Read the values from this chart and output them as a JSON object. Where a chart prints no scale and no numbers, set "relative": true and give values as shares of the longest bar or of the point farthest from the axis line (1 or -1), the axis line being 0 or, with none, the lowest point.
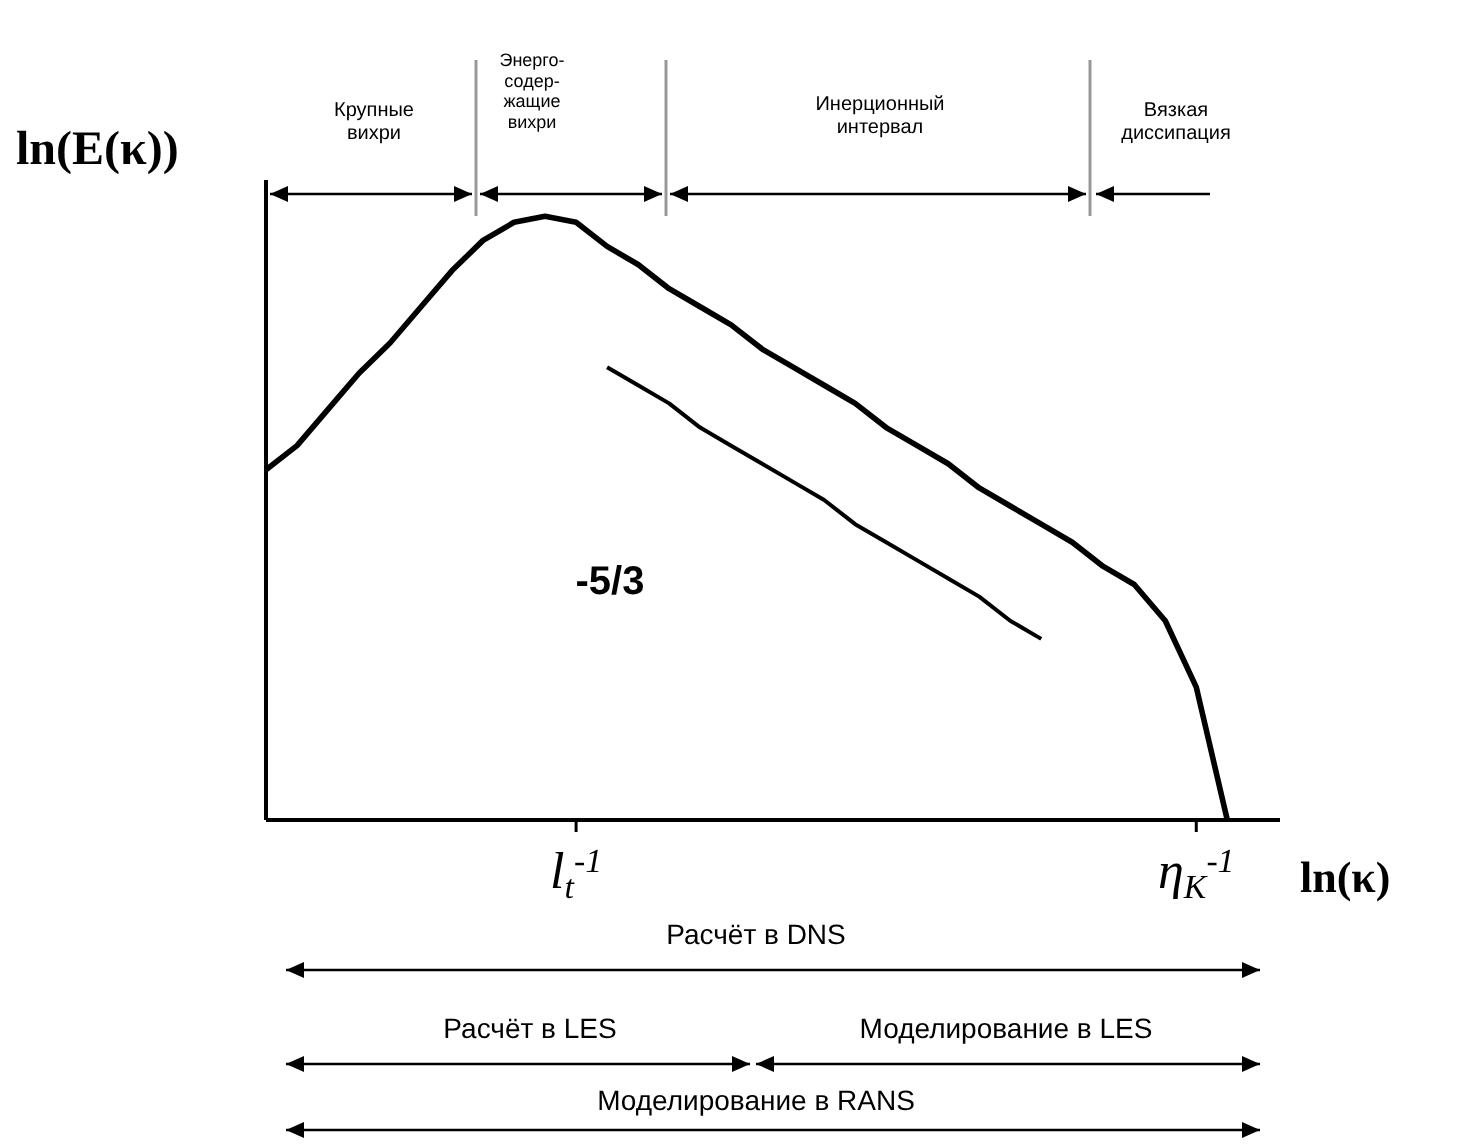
{
  "chart_data": {
    "type": "line",
    "relative": true,
    "xlabel": "ln(κ)",
    "ylabel": "ln(E(κ))",
    "marker": "none",
    "categories": [
      null,
      null,
      null,
      null,
      null,
      null,
      null,
      null,
      null,
      null,
      "l$_{t}$$^{-1}$",
      null,
      null,
      null,
      null,
      null,
      null,
      null,
      null,
      null,
      null,
      null,
      null,
      null,
      null,
      null,
      null,
      null,
      null,
      null,
      "η$_{K}$$^{-1}$",
      null
    ],
    "series": [
      {
        "color": "#000000",
        "values": [
          0.58,
          0.62,
          0.68,
          0.74,
          0.79,
          0.85,
          0.91,
          0.96,
          0.99,
          1.0,
          0.99,
          0.95,
          0.92,
          0.88,
          0.85,
          0.82,
          0.78,
          0.75,
          0.72,
          0.69,
          0.65,
          0.62,
          0.59,
          0.55,
          0.52,
          0.49,
          0.46,
          0.42,
          0.39,
          0.33,
          0.22,
          0
        ]
      },
      {
        "color": "#000000",
        "values": [
          null,
          null,
          null,
          null,
          null,
          null,
          null,
          null,
          null,
          null,
          null,
          0.75,
          0.72,
          0.69,
          0.65,
          0.62,
          0.59,
          0.56,
          0.53,
          0.49,
          0.46,
          0.43,
          0.4,
          0.37,
          0.33,
          0.3,
          null,
          null,
          null,
          null,
          null,
          null
        ]
      }
    ],
    "annotations": [
      "Крупные\nвихри",
      "Энерго-\nсодер-\nжащие\nвихри",
      "Инерционный\nинтервал",
      "Вязкая\nдиссипация",
      "-5/3",
      "Расчёт в DNS",
      "Расчёт в LES",
      "Моделирование в LES",
      "Моделирование в RANS"
    ]
  }
}
